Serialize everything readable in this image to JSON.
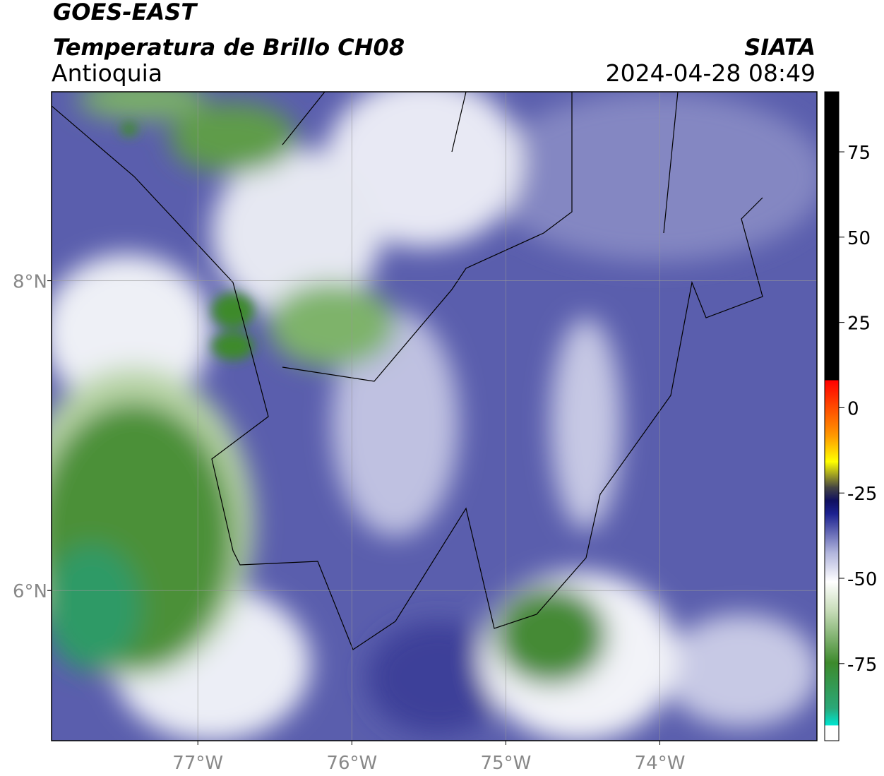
{
  "header": {
    "title": "GOES-EAST",
    "subtitle": "Temperatura de Brillo CH08",
    "region": "Antioquia",
    "source": "SIATA",
    "datetime": "2024-04-28 08:49"
  },
  "map": {
    "xlim": [
      -77.95,
      -72.98
    ],
    "ylim": [
      5.03,
      9.22
    ],
    "xticks": [
      {
        "value": -77,
        "label": "77°W"
      },
      {
        "value": -76,
        "label": "76°W"
      },
      {
        "value": -75,
        "label": "75°W"
      },
      {
        "value": -74,
        "label": "74°W"
      }
    ],
    "yticks": [
      {
        "value": 8,
        "label": "8°N"
      },
      {
        "value": 6,
        "label": "6°N"
      }
    ],
    "grid": true
  },
  "colorbar": {
    "lim": [
      -97.6,
      92.6
    ],
    "ticks": [
      75,
      50,
      25,
      0,
      -25,
      -50,
      -75
    ]
  }
}
